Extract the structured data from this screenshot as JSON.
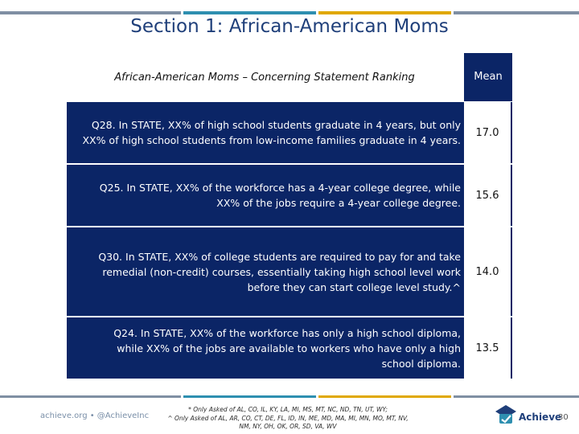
{
  "header": {
    "title": "Section 1: African-American Moms"
  },
  "table": {
    "caption": "African-American Moms – Concerning Statement Ranking",
    "mean_header": "Mean",
    "rows": [
      {
        "lines": [
          "Q28. In STATE, XX% of high school students graduate in 4 years, but only",
          "XX% of high school students from low-income families graduate in 4 years."
        ],
        "mean": "17.0"
      },
      {
        "lines": [
          "Q25. In STATE, XX% of the workforce has a 4-year college degree, while",
          "XX% of the jobs require a 4-year college degree."
        ],
        "mean": "15.6"
      },
      {
        "lines": [
          "Q30. In STATE, XX% of college students are required to pay for and take",
          "remedial (non-credit) courses, essentially taking high school level work",
          "before they can start college level study.^"
        ],
        "mean": "14.0"
      },
      {
        "lines": [
          "Q24. In STATE, XX% of the workforce has only a high school diploma,",
          "while XX% of the jobs are available to workers who have only a high",
          "school diploma."
        ],
        "mean": "13.5"
      }
    ]
  },
  "footer": {
    "website": "achieve.org • @AchieveInc",
    "footnotes": [
      "* Only Asked of AL, CO, IL, KY, LA, MI, MS, MT, NC, ND, TN, UT, WY;",
      "^ Only Asked of AL, AR, CO, CT, DE, FL, ID, IN, ME, MD, MA, MI, MN, MO, MT, NV,",
      "NM, NY, OH, OK, OR, SD, VA, WV"
    ],
    "logo_text": "Achieve",
    "page_number": "30"
  },
  "colors": {
    "navy": "#0b2566",
    "title_blue": "#1f3f7a",
    "bar_grey": "#7f8fa3",
    "bar_gold": "#e0a800",
    "bar_teal": "#2e8fb0"
  }
}
